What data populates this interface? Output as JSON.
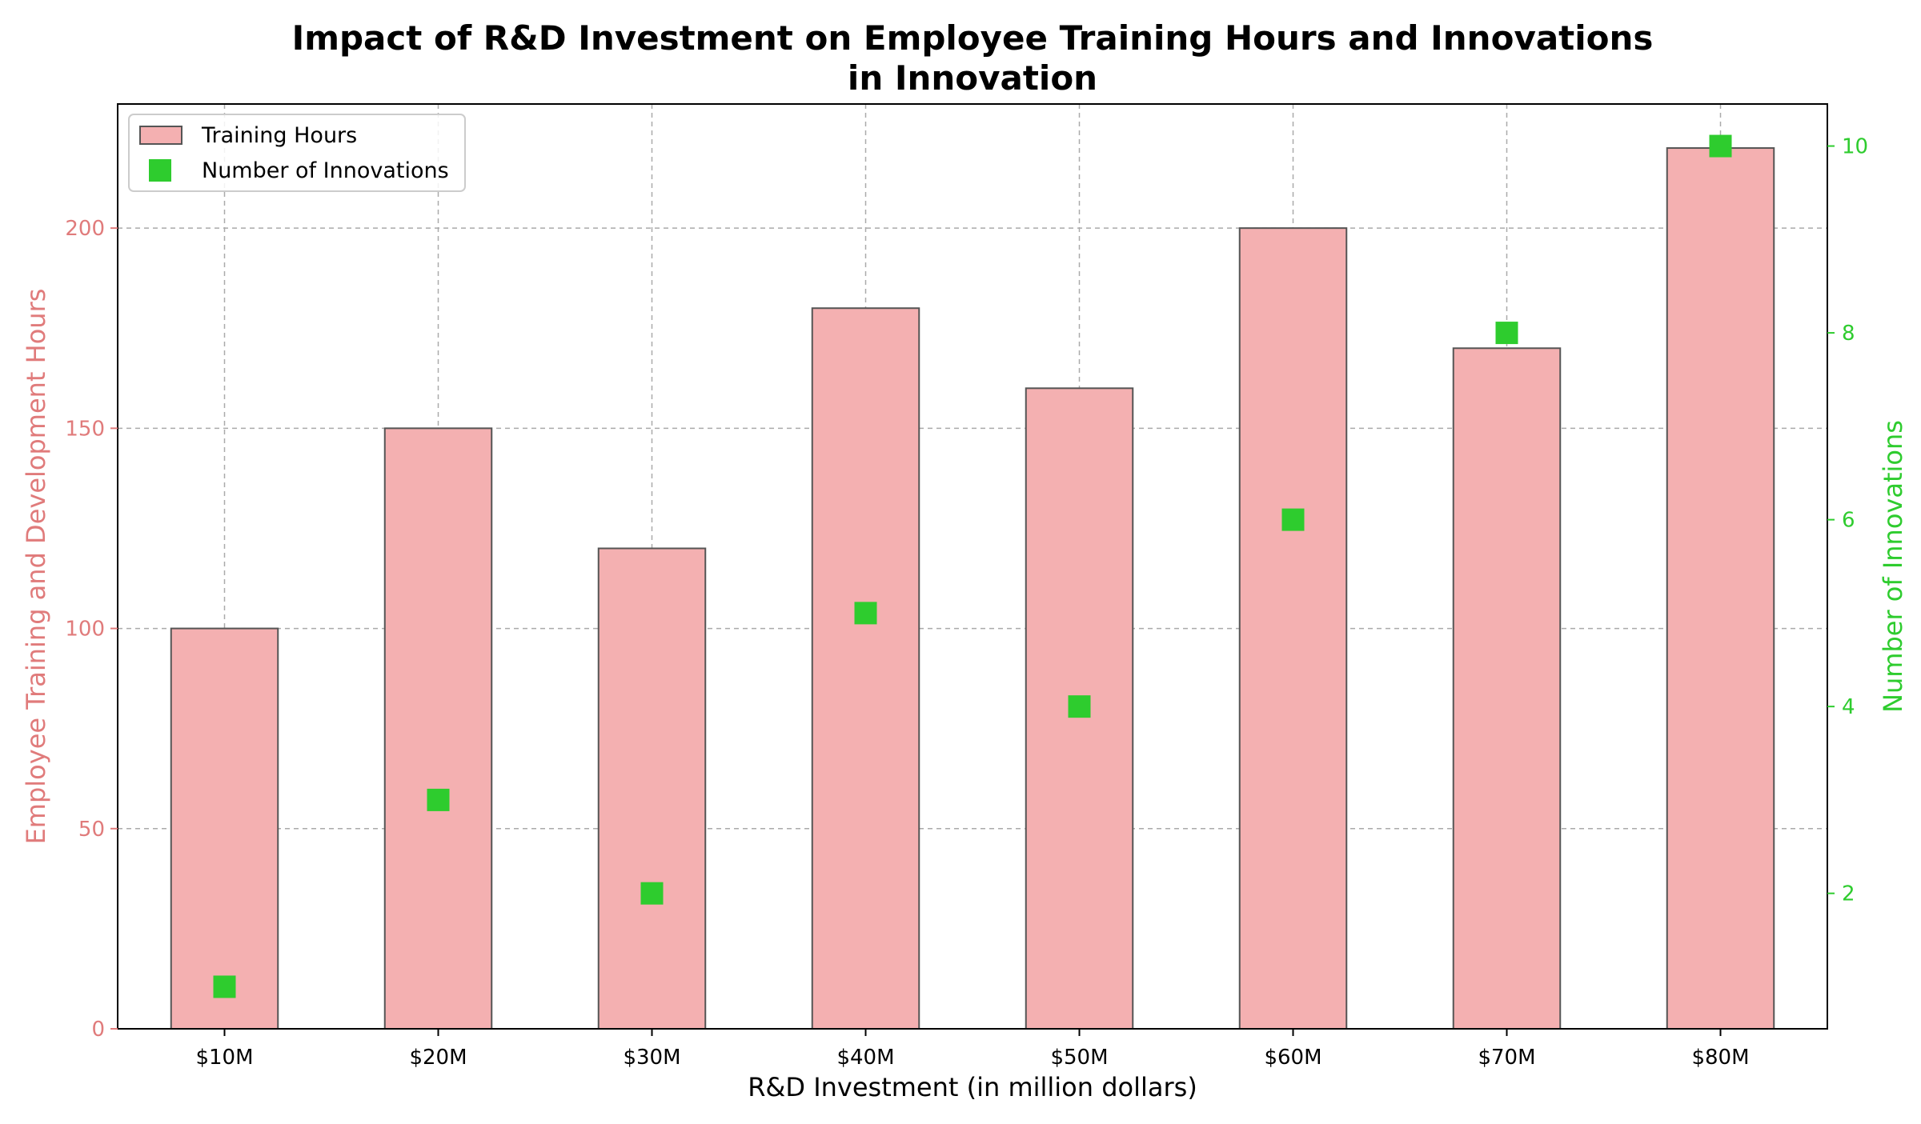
{
  "chart_data": {
    "type": "bar",
    "title_line1": "Impact of R&D Investment on Employee Training Hours and Innovations",
    "title_line2": "in Innovation",
    "xlabel": "R&D Investment (in million dollars)",
    "ylabel_left": "Employee Training and Development Hours",
    "ylabel_right": "Number of Innovations",
    "categories": [
      "$10M",
      "$20M",
      "$30M",
      "$40M",
      "$50M",
      "$60M",
      "$70M",
      "$80M"
    ],
    "left_axis": {
      "ylim": [
        0,
        231
      ],
      "ticks": [
        0,
        50,
        100,
        150,
        200
      ]
    },
    "right_axis": {
      "ylim": [
        0.55,
        10.45
      ],
      "ticks": [
        2,
        4,
        6,
        8,
        10
      ]
    },
    "grid": true,
    "legend_position": "top-left",
    "series": [
      {
        "name": "Training Hours",
        "type": "bar",
        "axis": "left",
        "color": "#f4b0b1",
        "edge_color": "#555555",
        "values": [
          100,
          150,
          120,
          180,
          160,
          200,
          170,
          220
        ]
      },
      {
        "name": "Number of Innovations",
        "type": "scatter",
        "marker": "square",
        "axis": "right",
        "color": "#2ecc2e",
        "values": [
          1,
          3,
          2,
          5,
          4,
          6,
          8,
          10
        ]
      }
    ],
    "colors": {
      "left_axis": "#e07b7b",
      "right_axis": "#2ecc2e"
    }
  }
}
